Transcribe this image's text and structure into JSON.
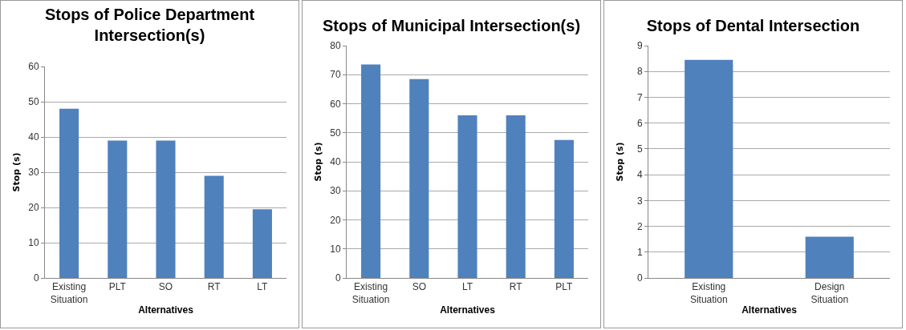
{
  "chart_data": [
    {
      "type": "bar",
      "title": "Stops of Police Department Intersection(s)",
      "xlabel": "Alternatives",
      "ylabel": "Stop (s)",
      "categories": [
        "Existing Situation",
        "PLT",
        "SO",
        "RT",
        "LT"
      ],
      "values": [
        48,
        39,
        39,
        29,
        19.5
      ],
      "color": "#4f81bd",
      "ylim": [
        0,
        60
      ],
      "yticks": [
        0,
        10,
        20,
        30,
        40,
        50,
        60
      ],
      "grid": "y"
    },
    {
      "type": "bar",
      "title": "Stops of Municipal Intersection(s)",
      "xlabel": "Alternatives",
      "ylabel": "Stop (s)",
      "categories": [
        "Existing Situation",
        "SO",
        "LT",
        "RT",
        "PLT"
      ],
      "values": [
        73.5,
        68.5,
        56,
        56,
        47.5
      ],
      "color": "#4f81bd",
      "ylim": [
        0,
        80
      ],
      "yticks": [
        0,
        10,
        20,
        30,
        40,
        50,
        60,
        70,
        80
      ],
      "grid": "y"
    },
    {
      "type": "bar",
      "title": "Stops of Dental Intersection",
      "xlabel": "Alternatives",
      "ylabel": "Stop (s)",
      "categories": [
        "Existing Situation",
        "Design Situation"
      ],
      "values": [
        8.45,
        1.6
      ],
      "color": "#4f81bd",
      "ylim": [
        0,
        9
      ],
      "yticks": [
        0,
        1,
        2,
        3,
        4,
        5,
        6,
        7,
        8,
        9
      ],
      "grid": "y"
    }
  ]
}
